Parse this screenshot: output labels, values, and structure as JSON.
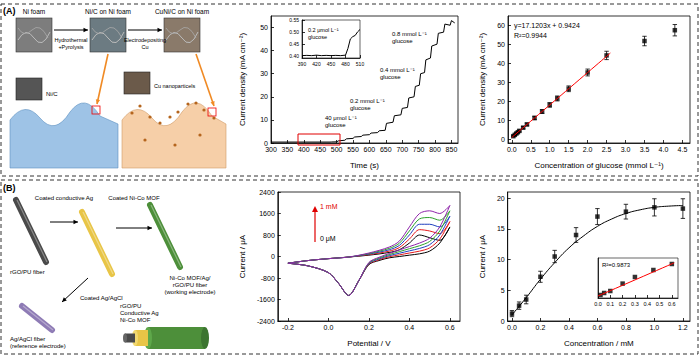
{
  "panels": [
    {
      "label": "(A)",
      "diagram": {
        "steps": [
          "Ni foam",
          "Ni/C on Ni foam",
          "CuNi/C on Ni foam"
        ],
        "processes": [
          [
            "Hydrothermal",
            "+Pyrolysis"
          ],
          [
            "Electrodepositing",
            "Cu"
          ]
        ],
        "zoom_labels": [
          "Ni/C",
          "Cu nanoparticels"
        ]
      }
    },
    {
      "label": "(B)",
      "diagram": {
        "fiber": "rGO/PU fiber",
        "processes": [
          "Coated conductive Ag",
          "Coated Ni-Co MOF",
          "Coated Ag/AgCl"
        ],
        "working_electrode": [
          "Ni-Co MOF/Ag/",
          "rGO/PU fiber",
          "(working electrode)"
        ],
        "reference_electrode": [
          "Ag/AgCl fiber",
          "(reference electrode)"
        ],
        "cross_section": [
          "rGO/PU",
          "Conductive Ag",
          "Ni-Co MOF"
        ]
      }
    }
  ],
  "chart_data": [
    {
      "type": "line",
      "x_label": "Time (s)",
      "y_label": "Current density (mA cm⁻²)",
      "x": [
        300,
        480,
        485,
        500,
        505,
        525,
        530,
        550,
        555,
        575,
        580,
        600,
        605,
        625,
        630,
        648,
        652,
        672,
        676,
        696,
        700,
        716,
        720,
        736,
        740,
        752,
        756,
        768,
        772,
        786,
        790,
        806,
        810,
        826,
        830,
        846,
        850,
        860
      ],
      "values": [
        0.4,
        0.4,
        0.45,
        0.5,
        0.9,
        1.2,
        1.8,
        2.0,
        2.6,
        2.8,
        3.4,
        3.6,
        4.3,
        4.5,
        5.3,
        5.5,
        8.5,
        9.0,
        11.8,
        12.2,
        15.0,
        15.4,
        19.5,
        20.0,
        24.5,
        25.0,
        30.0,
        30.5,
        36.0,
        36.8,
        42.0,
        42.8,
        47.5,
        48.0,
        51.5,
        51.0,
        53.0,
        52.0
      ],
      "color": "#000000",
      "xlim": [
        300,
        870
      ],
      "xticks": [
        300,
        350,
        400,
        450,
        500,
        550,
        600,
        650,
        700,
        750,
        800,
        850
      ],
      "ylim": [
        0,
        55
      ],
      "yticks": [
        0,
        10,
        20,
        30,
        40,
        50
      ],
      "grid": false,
      "annotations": [
        [
          "40 μmol L⁻¹",
          "glucose"
        ],
        [
          "0.2 mmol L⁻¹",
          "glucose"
        ],
        [
          "0.4 mmol L⁻¹",
          "glucose"
        ],
        [
          "0.8 mmol L⁻¹",
          "glucose"
        ]
      ],
      "inset": {
        "type": "line",
        "x": [
          390,
          400,
          410,
          420,
          430,
          440,
          450,
          460,
          470,
          480,
          485,
          490,
          495,
          500,
          505,
          510
        ],
        "values": [
          0.4,
          0.401,
          0.4,
          0.402,
          0.4,
          0.401,
          0.4,
          0.401,
          0.4,
          0.402,
          0.43,
          0.47,
          0.48,
          0.485,
          0.5,
          0.51
        ],
        "color": "#000000",
        "xlim": [
          390,
          510
        ],
        "xticks": [
          390,
          420,
          450,
          480,
          510
        ],
        "ylim": [
          0.39,
          0.55
        ],
        "yticks": [
          {
            "value": 0.4,
            "label": "0.40"
          },
          0.45,
          {
            "value": 0.5,
            "label": "0.50"
          },
          0.55
        ],
        "annotations": [
          [
            "0.2 μmol L⁻¹",
            "glucose"
          ]
        ]
      }
    },
    {
      "type": "scatter",
      "x_label": "Concentration of glucose (mmol L⁻¹)",
      "y_label": "Current density (mA cm⁻²)",
      "x": [
        0.04,
        0.08,
        0.12,
        0.16,
        0.2,
        0.3,
        0.4,
        0.6,
        0.8,
        1.0,
        1.2,
        1.5,
        2.0,
        2.5,
        3.5,
        4.3
      ],
      "values": [
        1.6,
        2.3,
        3.0,
        3.7,
        4.4,
        6.1,
        7.8,
        11.2,
        14.6,
        18.1,
        21.5,
        26.6,
        35.2,
        44.2,
        51.8,
        57.5
      ],
      "errors": [
        0.3,
        0.3,
        0.4,
        0.4,
        0.5,
        0.6,
        0.7,
        0.9,
        1.0,
        1.2,
        1.3,
        1.5,
        1.8,
        2.2,
        2.5,
        3.0
      ],
      "color": "#000000",
      "marker": "square",
      "fit": {
        "x": [
          0,
          2.6
        ],
        "values": [
          0.94,
          45.45
        ],
        "color": "#ff0000"
      },
      "xlim": [
        -0.1,
        4.7
      ],
      "xticks": [
        {
          "value": 0,
          "label": "0.0"
        },
        0.5,
        {
          "value": 1,
          "label": "1.0"
        },
        1.5,
        {
          "value": 2,
          "label": "2.0"
        },
        2.5,
        {
          "value": 3,
          "label": "3.0"
        },
        3.5,
        {
          "value": 4,
          "label": "4.0"
        },
        4.5
      ],
      "ylim": [
        -2,
        65
      ],
      "yticks": [
        0,
        10,
        20,
        30,
        40,
        50,
        60
      ],
      "grid": false,
      "annotations": [
        "y=17.1203x + 0.9424",
        "R²=0.9944"
      ]
    },
    {
      "type": "line",
      "x_label": "Potential / V",
      "y_label": "Current / μA",
      "x": [
        -0.2,
        -0.1,
        0,
        0.1,
        0.2,
        0.3,
        0.35,
        0.4,
        0.45,
        0.5,
        0.55,
        0.6,
        0.55,
        0.5,
        0.45,
        0.4,
        0.35,
        0.3,
        0.25,
        0.2,
        0.15,
        0.1,
        0.05,
        0,
        -0.1,
        -0.2
      ],
      "series": [
        {
          "color": "#000000",
          "values": [
            -250,
            -150,
            -80,
            -20,
            50,
            150,
            250,
            500,
            800,
            700,
            600,
            1100,
            500,
            200,
            100,
            50,
            0,
            -50,
            -150,
            -300,
            -900,
            -1450,
            -1000,
            -600,
            -350,
            -250
          ]
        },
        {
          "color": "#e41a1c",
          "values": [
            -250,
            -150,
            -80,
            -20,
            70,
            200,
            330,
            650,
            1000,
            950,
            850,
            1300,
            650,
            320,
            200,
            130,
            60,
            -10,
            -120,
            -280,
            -900,
            -1450,
            -1000,
            -600,
            -350,
            -250
          ]
        },
        {
          "color": "#1f3fbf",
          "values": [
            -250,
            -150,
            -80,
            -20,
            90,
            250,
            410,
            800,
            1200,
            1200,
            1100,
            1500,
            800,
            440,
            300,
            210,
            120,
            30,
            -90,
            -260,
            -900,
            -1450,
            -1000,
            -600,
            -350,
            -250
          ]
        },
        {
          "color": "#2ca02c",
          "values": [
            -250,
            -150,
            -80,
            -20,
            110,
            300,
            490,
            950,
            1400,
            1450,
            1350,
            1700,
            950,
            560,
            400,
            290,
            180,
            70,
            -60,
            -240,
            -900,
            -1450,
            -1000,
            -600,
            -350,
            -250
          ]
        },
        {
          "color": "#8e24aa",
          "values": [
            -250,
            -150,
            -80,
            -20,
            130,
            350,
            570,
            1100,
            1600,
            1700,
            1600,
            1900,
            1100,
            680,
            500,
            370,
            240,
            110,
            -30,
            -220,
            -900,
            -1450,
            -1000,
            -600,
            -350,
            -250
          ]
        }
      ],
      "xlim": [
        -0.25,
        0.65
      ],
      "xticks": [
        -0.2,
        {
          "value": 0,
          "label": "0.0"
        },
        0.2,
        0.4,
        0.6
      ],
      "ylim": [
        -2400,
        2400
      ],
      "yticks": [
        -2400,
        -1600,
        -800,
        0,
        800,
        1600,
        2400
      ],
      "grid": false,
      "annotations": [
        "1 mM",
        "0 μM"
      ]
    },
    {
      "type": "scatter",
      "x_label": "Concentration / mM",
      "y_label": "Current / μA",
      "x": [
        0,
        0.05,
        0.1,
        0.2,
        0.3,
        0.45,
        0.6,
        0.8,
        1.0,
        1.2
      ],
      "values": [
        1.2,
        2.5,
        3.5,
        7.2,
        10.5,
        14.0,
        17.0,
        17.8,
        18.5,
        18.3
      ],
      "errors": [
        0.5,
        0.6,
        0.7,
        0.9,
        1.0,
        1.2,
        1.3,
        1.2,
        1.4,
        1.6
      ],
      "color": "#000000",
      "marker": "square",
      "fit": {
        "x": [
          0,
          0.1,
          0.2,
          0.3,
          0.4,
          0.5,
          0.6,
          0.7,
          0.8,
          0.9,
          1.0,
          1.1,
          1.2
        ],
        "values": [
          1.0,
          3.8,
          6.8,
          9.5,
          11.9,
          13.8,
          15.4,
          16.6,
          17.5,
          18.1,
          18.5,
          18.7,
          18.8
        ],
        "color": "#000000"
      },
      "xlim": [
        -0.03,
        1.25
      ],
      "xticks": [
        {
          "value": 0,
          "label": "0.0"
        },
        0.2,
        0.4,
        0.6,
        0.8,
        {
          "value": 1,
          "label": "1.0"
        },
        1.2
      ],
      "ylim": [
        0,
        21
      ],
      "yticks": [
        0,
        5,
        10,
        15,
        20
      ],
      "grid": false,
      "inset": {
        "type": "scatter",
        "x": [
          0.02,
          0.05,
          0.1,
          0.2,
          0.3,
          0.45,
          0.6
        ],
        "values": [
          1.5,
          2.5,
          3.5,
          7.2,
          10.5,
          14.0,
          17.0
        ],
        "color": "#000000",
        "marker": "square",
        "fit": {
          "x": [
            0,
            0.62
          ],
          "values": [
            1.0,
            17.6
          ],
          "color": "#ff0000"
        },
        "xlim": [
          0,
          0.65
        ],
        "xticks": [
          {
            "value": 0,
            "label": "0.0"
          },
          0.1,
          0.2,
          0.3,
          0.4,
          0.5,
          0.6
        ],
        "ylim": [
          0,
          20
        ],
        "tick_labels": "x",
        "annotations": [
          "R²=0.9873"
        ]
      }
    }
  ]
}
